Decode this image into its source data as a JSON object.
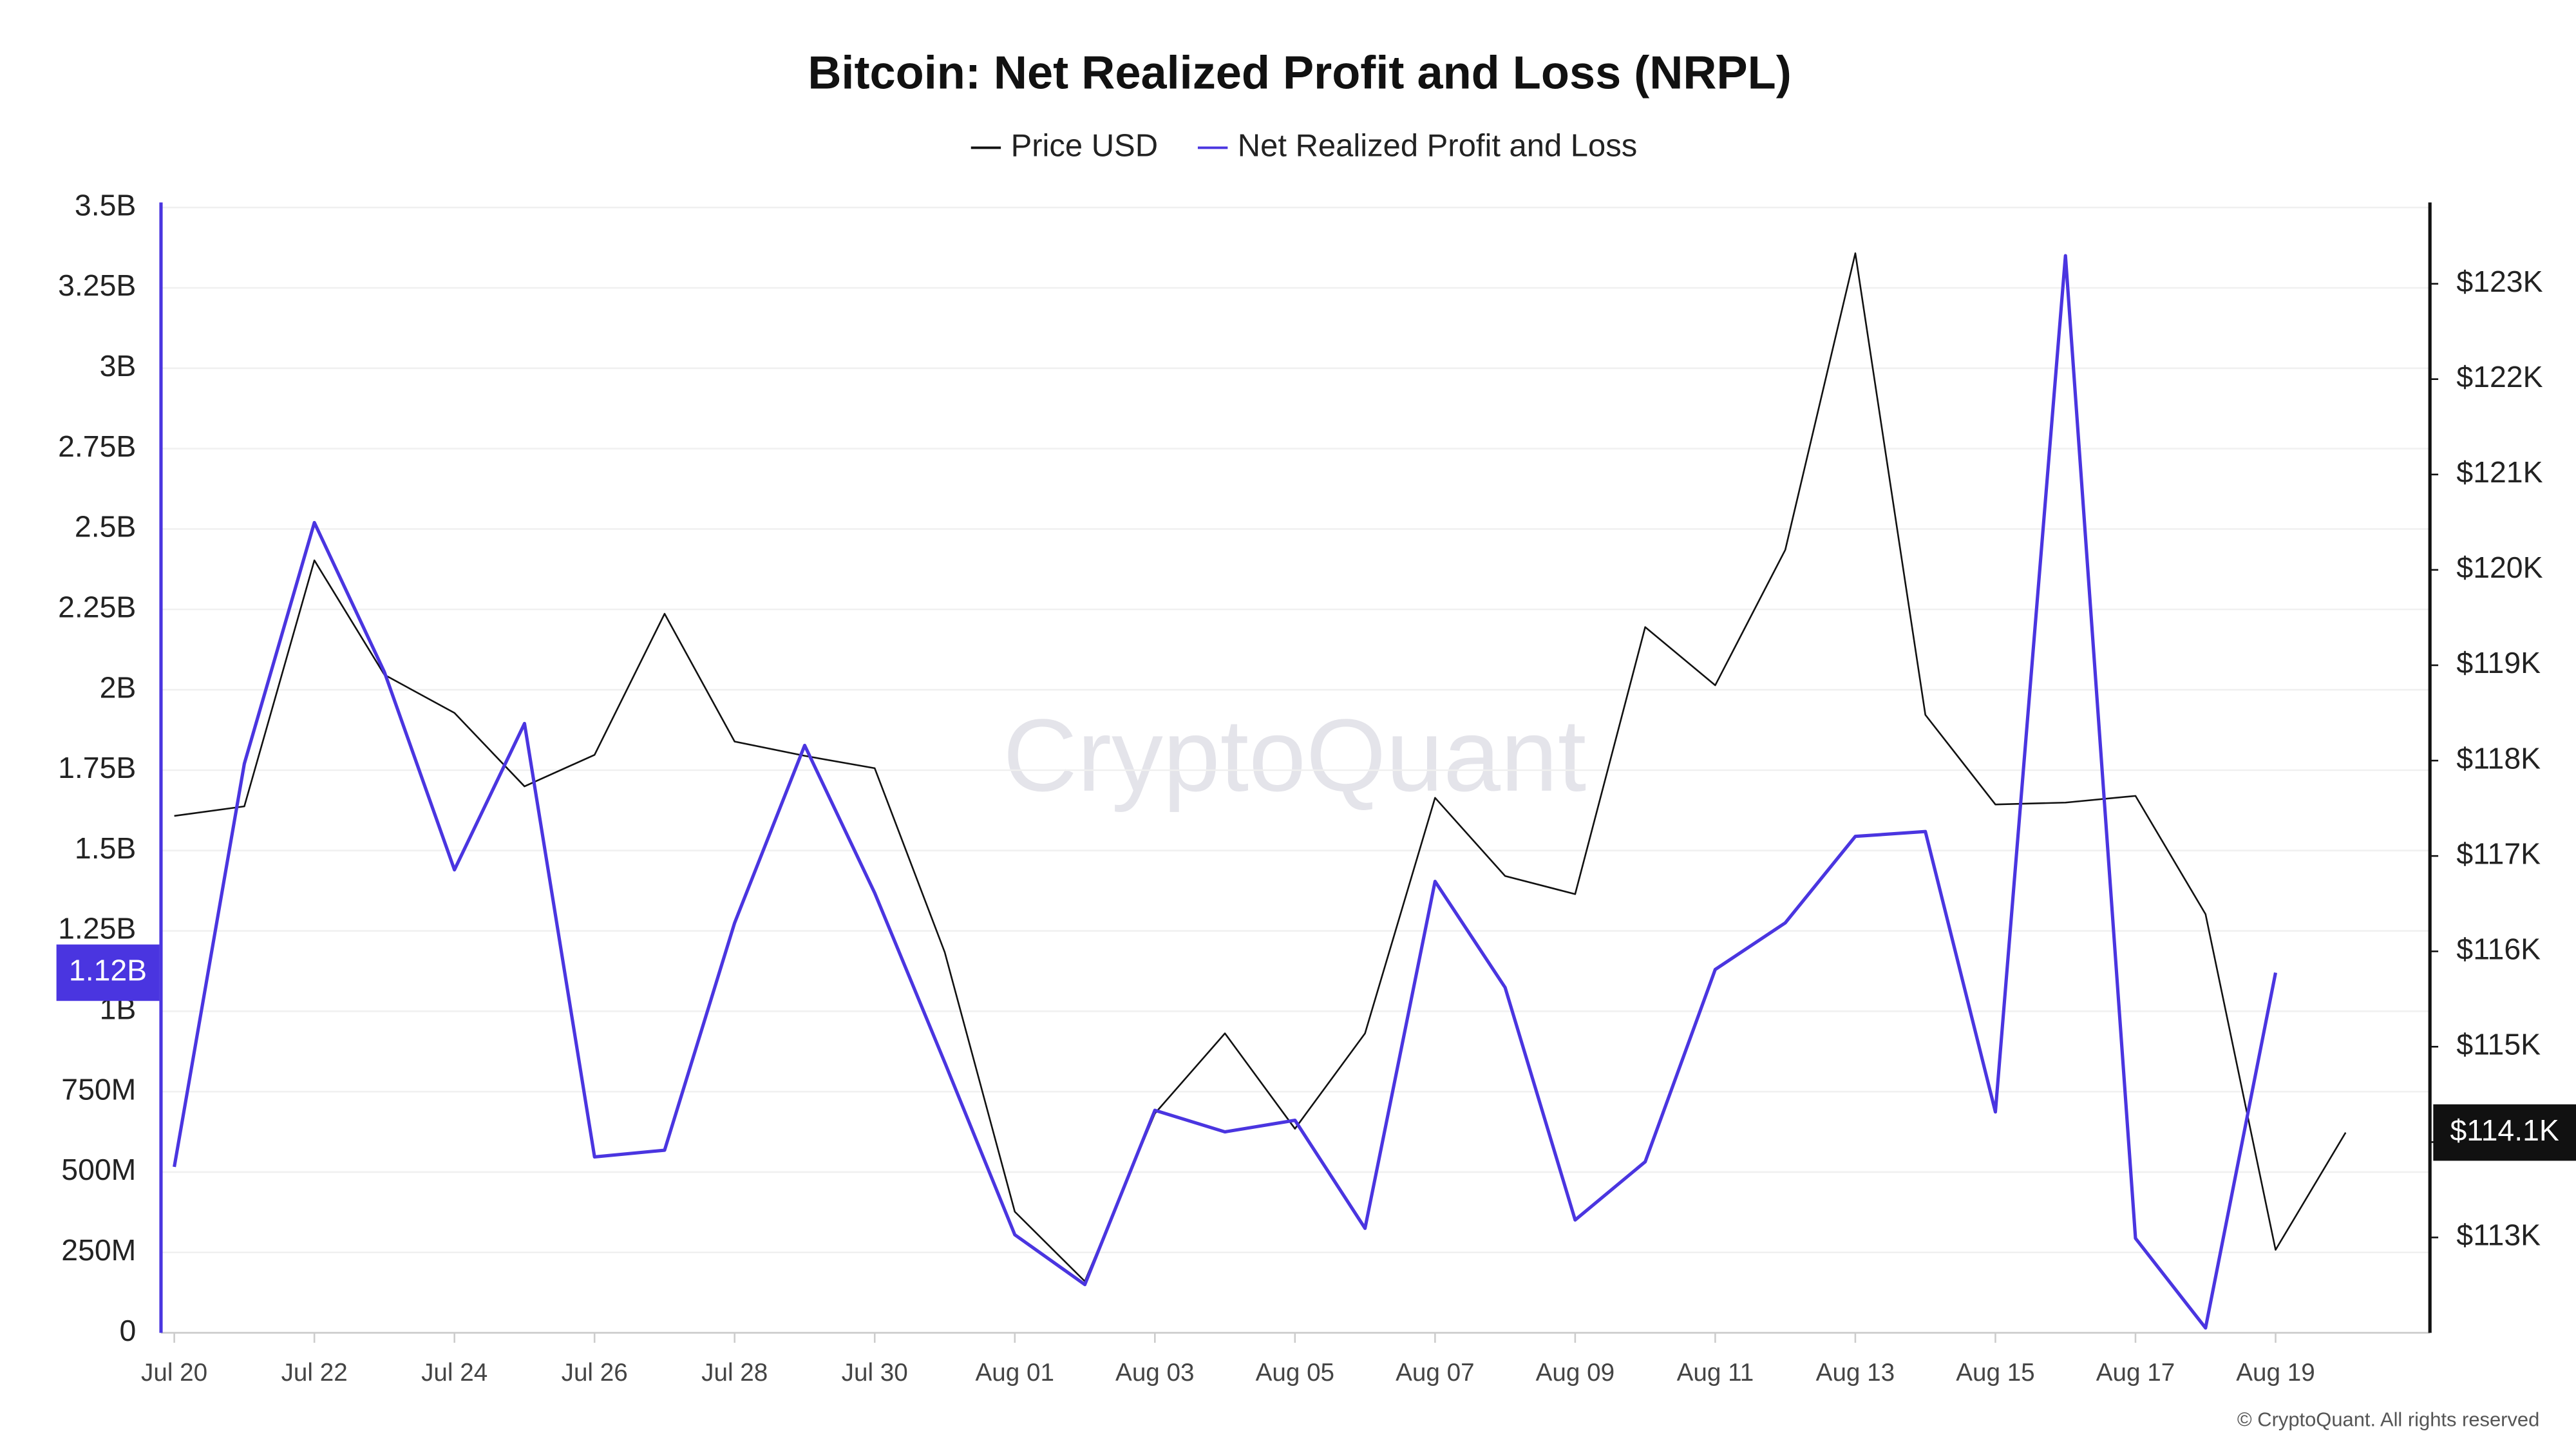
{
  "chart_data": {
    "type": "line",
    "title": "Bitcoin: Net Realized Profit and Loss (NRPL)",
    "watermark": "CryptoQuant",
    "footer": "© CryptoQuant. All rights reserved",
    "categories": [
      "Jul 20",
      null,
      "Jul 22",
      null,
      "Jul 24",
      null,
      "Jul 26",
      null,
      "Jul 28",
      null,
      "Jul 30",
      null,
      "Aug 01",
      null,
      "Aug 03",
      null,
      "Aug 05",
      null,
      "Aug 07",
      null,
      "Aug 09",
      null,
      "Aug 11",
      null,
      "Aug 13",
      null,
      "Aug 15",
      null,
      "Aug 17",
      null,
      "Aug 19",
      null
    ],
    "series": [
      {
        "name": "Price USD",
        "color": "#111111",
        "axis": "y2",
        "values": [
          117420,
          117520,
          120100,
          118900,
          118500,
          117730,
          118060,
          119540,
          118200,
          118050,
          117920,
          115990,
          113270,
          112540,
          114300,
          115140,
          114140,
          115140,
          117610,
          116790,
          116600,
          119400,
          118790,
          120210,
          123320,
          118480,
          117540,
          117560,
          117630,
          116390,
          112870,
          114100
        ],
        "value_labels": [
          null,
          null,
          null,
          null,
          null,
          null,
          null,
          null,
          null,
          null,
          null,
          null,
          null,
          null,
          null,
          null,
          null,
          null,
          null,
          null,
          null,
          null,
          null,
          null,
          null,
          null,
          null,
          null,
          null,
          null,
          null,
          "$114.1K"
        ]
      },
      {
        "name": "Net Realized Profit and Loss",
        "color": "#4a35e0",
        "values": [
          516000000,
          1770000000,
          2520000000,
          2055000000,
          1440000000,
          1895000000,
          547000000,
          568000000,
          1275000000,
          1827000000,
          1368000000,
          841000000,
          305000000,
          150000000,
          692000000,
          625000000,
          661000000,
          325000000,
          1404000000,
          1074000000,
          351000000,
          532000000,
          1130000000,
          1275000000,
          1544000000,
          1559000000,
          687000000,
          3350000000,
          294000000,
          15000000,
          1120000000,
          null
        ],
        "value_labels": [
          null,
          null,
          null,
          null,
          null,
          null,
          null,
          null,
          null,
          null,
          null,
          null,
          null,
          null,
          null,
          null,
          null,
          null,
          null,
          null,
          null,
          null,
          null,
          null,
          null,
          null,
          null,
          null,
          null,
          null,
          "1.12B",
          null
        ]
      }
    ],
    "ylim": [
      0,
      3500000000
    ],
    "yticks": [
      0,
      {
        "value": 250000000,
        "label": "250M"
      },
      {
        "value": 500000000,
        "label": "500M"
      },
      {
        "value": 750000000,
        "label": "750M"
      },
      {
        "value": 1000000000,
        "label": "1B"
      },
      {
        "value": 1250000000,
        "label": "1.25B"
      },
      {
        "value": 1500000000,
        "label": "1.5B"
      },
      {
        "value": 1750000000,
        "label": "1.75B"
      },
      {
        "value": 2000000000,
        "label": "2B"
      },
      {
        "value": 2250000000,
        "label": "2.25B"
      },
      {
        "value": 2500000000,
        "label": "2.5B"
      },
      {
        "value": 2750000000,
        "label": "2.75B"
      },
      {
        "value": 3000000000,
        "label": "3B"
      },
      {
        "value": 3250000000,
        "label": "3.25B"
      },
      {
        "value": 3500000000,
        "label": "3.5B"
      }
    ],
    "y2lim": [
      112000,
      123800
    ],
    "y2ticks": [
      {
        "value": 113000,
        "label": "$113K"
      },
      {
        "value": 114000,
        "label": "$114K"
      },
      {
        "value": 115000,
        "label": "$115K"
      },
      {
        "value": 116000,
        "label": "$116K"
      },
      {
        "value": 117000,
        "label": "$117K"
      },
      {
        "value": 118000,
        "label": "$118K"
      },
      {
        "value": 119000,
        "label": "$119K"
      },
      {
        "value": 120000,
        "label": "$120K"
      },
      {
        "value": 121000,
        "label": "$121K"
      },
      {
        "value": 122000,
        "label": "$122K"
      },
      {
        "value": 123000,
        "label": "$123K"
      }
    ],
    "grid": true
  }
}
